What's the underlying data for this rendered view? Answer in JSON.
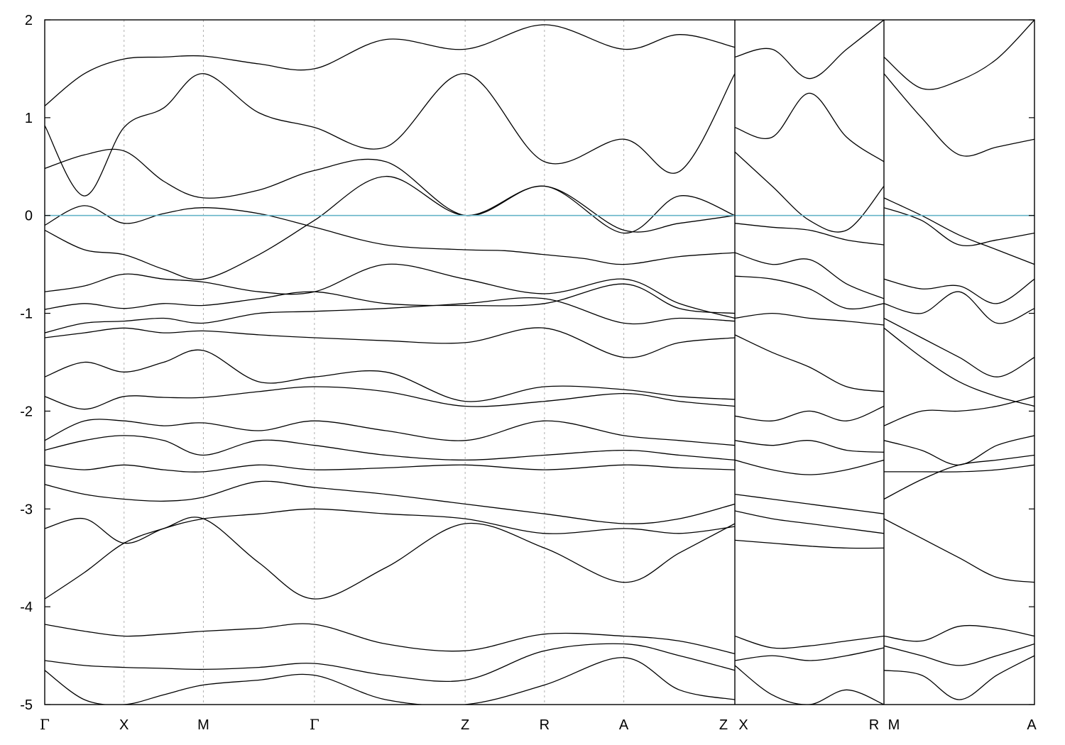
{
  "chart_data": {
    "type": "line",
    "title": "",
    "xlabel": "",
    "ylabel": "",
    "ylim": [
      -5,
      2
    ],
    "yticks": [
      -5,
      -4,
      -3,
      -2,
      -1,
      0,
      1,
      2
    ],
    "ytick_labels": [
      "-5",
      "-4",
      "-3",
      "-2",
      "-1",
      "0",
      "1",
      "2"
    ],
    "grid": "vertical dashed lines at high-symmetry points",
    "legend": "none",
    "fermi_level": 0,
    "colors": {
      "bands": "#000000",
      "fermi_line": "#66b4c8",
      "kpoint_lines": "#b0b0b0"
    },
    "segments": [
      {
        "kpoints": [
          "Γ",
          "X",
          "M",
          "Γ",
          "Z",
          "R",
          "A",
          "Z"
        ],
        "kpos": [
          0,
          1,
          2,
          3.4,
          5.3,
          6.3,
          7.3,
          8.7
        ]
      },
      {
        "kpoints": [
          "X",
          "R"
        ],
        "kpos": [
          0,
          1
        ]
      },
      {
        "kpoints": [
          "M",
          "A"
        ],
        "kpos": [
          0,
          1
        ]
      }
    ],
    "bands": [
      {
        "segment": 0,
        "k": [
          0,
          0.5,
          1,
          1.5,
          2,
          2.7,
          3.4,
          4.3,
          5.3,
          5.8,
          6.3,
          6.8,
          7.3,
          8,
          8.7
        ],
        "e": [
          -0.1,
          0.1,
          -0.08,
          0.02,
          0.08,
          0.02,
          -0.12,
          -0.3,
          -0.35,
          -0.36,
          -0.4,
          -0.44,
          -0.5,
          -0.42,
          -0.38
        ]
      },
      {
        "segment": 0,
        "k": [
          0,
          0.5,
          1,
          1.5,
          2,
          2.7,
          3.4,
          4.3,
          5.3,
          6.3,
          7.3,
          8,
          8.7
        ],
        "e": [
          -0.15,
          -0.35,
          -0.4,
          -0.55,
          -0.65,
          -0.4,
          -0.05,
          0.4,
          0.0,
          0.3,
          -0.15,
          -0.08,
          0.0
        ]
      },
      {
        "segment": 0,
        "k": [
          0,
          0.5,
          1,
          1.5,
          2,
          2.7,
          3.4,
          4.3,
          5.3,
          6.3,
          7.3,
          8,
          8.7
        ],
        "e": [
          0.48,
          0.62,
          0.66,
          0.35,
          0.18,
          0.26,
          0.46,
          0.55,
          0.0,
          0.3,
          -0.18,
          0.2,
          0.0
        ]
      },
      {
        "segment": 0,
        "k": [
          0,
          0.5,
          1,
          1.5,
          2,
          2.7,
          3.4,
          4.3,
          5.3,
          6.3,
          7.3,
          8,
          8.7
        ],
        "e": [
          0.92,
          0.2,
          0.9,
          1.1,
          1.45,
          1.05,
          0.9,
          0.7,
          1.45,
          0.55,
          0.78,
          0.45,
          1.45
        ]
      },
      {
        "segment": 0,
        "k": [
          0,
          0.5,
          1,
          1.5,
          2,
          2.7,
          3.4,
          4.3,
          5.3,
          6.3,
          7.3,
          8,
          8.7
        ],
        "e": [
          1.12,
          1.45,
          1.6,
          1.62,
          1.63,
          1.55,
          1.5,
          1.8,
          1.7,
          1.95,
          1.7,
          1.85,
          1.72
        ]
      },
      {
        "segment": 0,
        "k": [
          0,
          0.5,
          1,
          1.5,
          2,
          2.7,
          3.4,
          4.3,
          5.3,
          6.3,
          7.3,
          8,
          8.7
        ],
        "e": [
          -0.78,
          -0.72,
          -0.6,
          -0.65,
          -0.68,
          -0.78,
          -0.78,
          -0.5,
          -0.65,
          -0.8,
          -0.65,
          -0.9,
          -1.05
        ]
      },
      {
        "segment": 0,
        "k": [
          0,
          0.5,
          1,
          1.5,
          2,
          2.7,
          3.4,
          4.3,
          5.3,
          6.3,
          7.3,
          8,
          8.7
        ],
        "e": [
          -0.96,
          -0.9,
          -0.95,
          -0.9,
          -0.92,
          -0.85,
          -0.78,
          -0.9,
          -0.92,
          -0.9,
          -0.7,
          -0.95,
          -1.0
        ]
      },
      {
        "segment": 0,
        "k": [
          0,
          0.5,
          1,
          1.5,
          2,
          2.7,
          3.4,
          4.3,
          5.3,
          6.3,
          7.3,
          8,
          8.7
        ],
        "e": [
          -1.2,
          -1.1,
          -1.08,
          -1.05,
          -1.1,
          -1.0,
          -0.98,
          -0.95,
          -0.9,
          -0.85,
          -1.1,
          -1.05,
          -1.08
        ]
      },
      {
        "segment": 0,
        "k": [
          0,
          0.5,
          1,
          1.5,
          2,
          2.7,
          3.4,
          4.3,
          5.3,
          6.3,
          7.3,
          8,
          8.7
        ],
        "e": [
          -1.25,
          -1.2,
          -1.15,
          -1.2,
          -1.18,
          -1.22,
          -1.25,
          -1.28,
          -1.3,
          -1.15,
          -1.45,
          -1.3,
          -1.25
        ]
      },
      {
        "segment": 0,
        "k": [
          0,
          0.5,
          1,
          1.5,
          2,
          2.7,
          3.4,
          4.3,
          5.3,
          6.3,
          7.3,
          8,
          8.7
        ],
        "e": [
          -1.65,
          -1.5,
          -1.6,
          -1.5,
          -1.38,
          -1.7,
          -1.65,
          -1.6,
          -1.9,
          -1.75,
          -1.78,
          -1.85,
          -1.88
        ]
      },
      {
        "segment": 0,
        "k": [
          0,
          0.5,
          1,
          1.5,
          2,
          2.7,
          3.4,
          4.3,
          5.3,
          6.3,
          7.3,
          8,
          8.7
        ],
        "e": [
          -1.85,
          -1.98,
          -1.85,
          -1.86,
          -1.86,
          -1.8,
          -1.75,
          -1.8,
          -1.95,
          -1.9,
          -1.82,
          -1.9,
          -1.95
        ]
      },
      {
        "segment": 0,
        "k": [
          0,
          0.5,
          1,
          1.5,
          2,
          2.7,
          3.4,
          4.3,
          5.3,
          6.3,
          7.3,
          8,
          8.7
        ],
        "e": [
          -2.3,
          -2.1,
          -2.1,
          -2.15,
          -2.12,
          -2.2,
          -2.1,
          -2.2,
          -2.3,
          -2.1,
          -2.25,
          -2.3,
          -2.35
        ]
      },
      {
        "segment": 0,
        "k": [
          0,
          0.5,
          1,
          1.5,
          2,
          2.7,
          3.4,
          4.3,
          5.3,
          6.3,
          7.3,
          8,
          8.7
        ],
        "e": [
          -2.4,
          -2.3,
          -2.25,
          -2.3,
          -2.45,
          -2.3,
          -2.35,
          -2.45,
          -2.5,
          -2.45,
          -2.4,
          -2.45,
          -2.5
        ]
      },
      {
        "segment": 0,
        "k": [
          0,
          0.5,
          1,
          1.5,
          2,
          2.7,
          3.4,
          4.3,
          5.3,
          6.3,
          7.3,
          8,
          8.7
        ],
        "e": [
          -2.55,
          -2.6,
          -2.55,
          -2.6,
          -2.62,
          -2.55,
          -2.6,
          -2.58,
          -2.55,
          -2.6,
          -2.55,
          -2.58,
          -2.6
        ]
      },
      {
        "segment": 0,
        "k": [
          0,
          0.5,
          1,
          1.5,
          2,
          2.7,
          3.4,
          4.3,
          5.3,
          6.3,
          7.3,
          8,
          8.7
        ],
        "e": [
          -2.75,
          -2.85,
          -2.9,
          -2.92,
          -2.88,
          -2.72,
          -2.78,
          -2.85,
          -2.95,
          -3.05,
          -3.15,
          -3.1,
          -2.95
        ]
      },
      {
        "segment": 0,
        "k": [
          0,
          0.5,
          1,
          1.5,
          2,
          2.7,
          3.4,
          4.3,
          5.3,
          6.3,
          7.3,
          8,
          8.7
        ],
        "e": [
          -3.2,
          -3.1,
          -3.35,
          -3.2,
          -3.1,
          -3.05,
          -3.0,
          -3.05,
          -3.1,
          -3.25,
          -3.2,
          -3.25,
          -3.18
        ]
      },
      {
        "segment": 0,
        "k": [
          0,
          0.5,
          1,
          1.5,
          2,
          2.7,
          3.4,
          4.3,
          5.3,
          6.3,
          7.3,
          8,
          8.7
        ],
        "e": [
          -3.92,
          -3.65,
          -3.35,
          -3.2,
          -3.1,
          -3.55,
          -3.92,
          -3.6,
          -3.15,
          -3.4,
          -3.75,
          -3.45,
          -3.15
        ]
      },
      {
        "segment": 0,
        "k": [
          0,
          0.5,
          1,
          1.5,
          2,
          2.7,
          3.4,
          4.3,
          5.3,
          6.3,
          7.3,
          8,
          8.7
        ],
        "e": [
          -4.18,
          -4.25,
          -4.3,
          -4.28,
          -4.25,
          -4.22,
          -4.18,
          -4.38,
          -4.45,
          -4.28,
          -4.3,
          -4.35,
          -4.48
        ]
      },
      {
        "segment": 0,
        "k": [
          0,
          0.5,
          1,
          1.5,
          2,
          2.7,
          3.4,
          4.3,
          5.3,
          6.3,
          7.3,
          8,
          8.7
        ],
        "e": [
          -4.55,
          -4.6,
          -4.62,
          -4.63,
          -4.64,
          -4.62,
          -4.58,
          -4.7,
          -4.75,
          -4.45,
          -4.38,
          -4.5,
          -4.65
        ]
      },
      {
        "segment": 0,
        "k": [
          0,
          0.5,
          1,
          1.5,
          2,
          2.7,
          3.4,
          4.3,
          5.3,
          6.3,
          7.3,
          8,
          8.7
        ],
        "e": [
          -4.65,
          -4.95,
          -5.0,
          -4.9,
          -4.8,
          -4.75,
          -4.7,
          -4.95,
          -5.0,
          -4.8,
          -4.52,
          -4.85,
          -4.95
        ]
      },
      {
        "segment": 1,
        "k": [
          0,
          0.25,
          0.5,
          0.75,
          1
        ],
        "e": [
          -0.08,
          -0.12,
          -0.15,
          -0.25,
          -0.3
        ]
      },
      {
        "segment": 1,
        "k": [
          0,
          0.25,
          0.5,
          0.75,
          1
        ],
        "e": [
          0.65,
          0.3,
          -0.05,
          -0.15,
          0.3
        ]
      },
      {
        "segment": 1,
        "k": [
          0,
          0.25,
          0.5,
          0.75,
          1
        ],
        "e": [
          0.9,
          0.8,
          1.25,
          0.8,
          0.55
        ]
      },
      {
        "segment": 1,
        "k": [
          0,
          0.25,
          0.5,
          0.75,
          1
        ],
        "e": [
          1.62,
          1.7,
          1.4,
          1.7,
          2.0
        ]
      },
      {
        "segment": 1,
        "k": [
          0,
          0.25,
          0.5,
          0.75,
          1
        ],
        "e": [
          -0.38,
          -0.5,
          -0.45,
          -0.7,
          -0.85
        ]
      },
      {
        "segment": 1,
        "k": [
          0,
          0.25,
          0.5,
          0.75,
          1
        ],
        "e": [
          -0.62,
          -0.65,
          -0.75,
          -0.95,
          -0.9
        ]
      },
      {
        "segment": 1,
        "k": [
          0,
          0.25,
          0.5,
          0.75,
          1
        ],
        "e": [
          -1.05,
          -1.0,
          -1.05,
          -1.08,
          -1.12
        ]
      },
      {
        "segment": 1,
        "k": [
          0,
          0.25,
          0.5,
          0.75,
          1
        ],
        "e": [
          -1.22,
          -1.4,
          -1.55,
          -1.75,
          -1.8
        ]
      },
      {
        "segment": 1,
        "k": [
          0,
          0.25,
          0.5,
          0.75,
          1
        ],
        "e": [
          -2.05,
          -2.1,
          -2.0,
          -2.1,
          -1.95
        ]
      },
      {
        "segment": 1,
        "k": [
          0,
          0.25,
          0.5,
          0.75,
          1
        ],
        "e": [
          -2.3,
          -2.35,
          -2.3,
          -2.4,
          -2.42
        ]
      },
      {
        "segment": 1,
        "k": [
          0,
          0.25,
          0.5,
          0.75,
          1
        ],
        "e": [
          -2.5,
          -2.6,
          -2.65,
          -2.6,
          -2.5
        ]
      },
      {
        "segment": 1,
        "k": [
          0,
          0.25,
          0.5,
          0.75,
          1
        ],
        "e": [
          -2.85,
          -2.9,
          -2.95,
          -3.0,
          -3.05
        ]
      },
      {
        "segment": 1,
        "k": [
          0,
          0.25,
          0.5,
          0.75,
          1
        ],
        "e": [
          -3.02,
          -3.1,
          -3.15,
          -3.2,
          -3.25
        ]
      },
      {
        "segment": 1,
        "k": [
          0,
          0.25,
          0.5,
          0.75,
          1
        ],
        "e": [
          -3.32,
          -3.35,
          -3.38,
          -3.4,
          -3.4
        ]
      },
      {
        "segment": 1,
        "k": [
          0,
          0.25,
          0.5,
          0.75,
          1
        ],
        "e": [
          -4.3,
          -4.42,
          -4.4,
          -4.35,
          -4.3
        ]
      },
      {
        "segment": 1,
        "k": [
          0,
          0.25,
          0.5,
          0.75,
          1
        ],
        "e": [
          -4.55,
          -4.5,
          -4.55,
          -4.5,
          -4.42
        ]
      },
      {
        "segment": 1,
        "k": [
          0,
          0.25,
          0.5,
          0.75,
          1
        ],
        "e": [
          -4.6,
          -4.9,
          -5.0,
          -4.85,
          -5.0
        ]
      },
      {
        "segment": 2,
        "k": [
          0,
          0.25,
          0.5,
          0.75,
          1
        ],
        "e": [
          1.62,
          1.3,
          1.38,
          1.6,
          2.0
        ]
      },
      {
        "segment": 2,
        "k": [
          0,
          0.25,
          0.5,
          0.75,
          1
        ],
        "e": [
          1.45,
          1.0,
          0.62,
          0.7,
          0.78
        ]
      },
      {
        "segment": 2,
        "k": [
          0,
          0.25,
          0.5,
          0.75,
          1
        ],
        "e": [
          0.18,
          0.0,
          -0.2,
          -0.35,
          -0.5
        ]
      },
      {
        "segment": 2,
        "k": [
          0,
          0.25,
          0.5,
          0.75,
          1
        ],
        "e": [
          0.08,
          -0.05,
          -0.3,
          -0.25,
          -0.18
        ]
      },
      {
        "segment": 2,
        "k": [
          0,
          0.25,
          0.5,
          0.75,
          1
        ],
        "e": [
          -0.65,
          -0.75,
          -0.72,
          -0.9,
          -0.65
        ]
      },
      {
        "segment": 2,
        "k": [
          0,
          0.25,
          0.5,
          0.75,
          1
        ],
        "e": [
          -0.9,
          -1.0,
          -0.78,
          -1.1,
          -0.95
        ]
      },
      {
        "segment": 2,
        "k": [
          0,
          0.25,
          0.5,
          0.75,
          1
        ],
        "e": [
          -1.05,
          -1.25,
          -1.45,
          -1.65,
          -1.45
        ]
      },
      {
        "segment": 2,
        "k": [
          0,
          0.25,
          0.5,
          0.75,
          1
        ],
        "e": [
          -1.15,
          -1.45,
          -1.7,
          -1.85,
          -1.95
        ]
      },
      {
        "segment": 2,
        "k": [
          0,
          0.25,
          0.5,
          0.75,
          1
        ],
        "e": [
          -2.15,
          -2.0,
          -2.0,
          -1.95,
          -1.85
        ]
      },
      {
        "segment": 2,
        "k": [
          0,
          0.25,
          0.5,
          0.75,
          1
        ],
        "e": [
          -2.3,
          -2.4,
          -2.55,
          -2.35,
          -2.25
        ]
      },
      {
        "segment": 2,
        "k": [
          0,
          0.25,
          0.5,
          0.75,
          1
        ],
        "e": [
          -2.62,
          -2.62,
          -2.62,
          -2.6,
          -2.55
        ]
      },
      {
        "segment": 2,
        "k": [
          0,
          0.25,
          0.5,
          0.75,
          1
        ],
        "e": [
          -2.9,
          -2.7,
          -2.55,
          -2.5,
          -2.45
        ]
      },
      {
        "segment": 2,
        "k": [
          0,
          0.25,
          0.5,
          0.75,
          1
        ],
        "e": [
          -3.1,
          -3.3,
          -3.5,
          -3.7,
          -3.75
        ]
      },
      {
        "segment": 2,
        "k": [
          0,
          0.25,
          0.5,
          0.75,
          1
        ],
        "e": [
          -4.3,
          -4.35,
          -4.2,
          -4.22,
          -4.3
        ]
      },
      {
        "segment": 2,
        "k": [
          0,
          0.25,
          0.5,
          0.75,
          1
        ],
        "e": [
          -4.65,
          -4.7,
          -4.95,
          -4.7,
          -4.5
        ]
      },
      {
        "segment": 2,
        "k": [
          0,
          0.25,
          0.5,
          0.75,
          1
        ],
        "e": [
          -4.4,
          -4.5,
          -4.6,
          -4.5,
          -4.38
        ]
      }
    ]
  }
}
